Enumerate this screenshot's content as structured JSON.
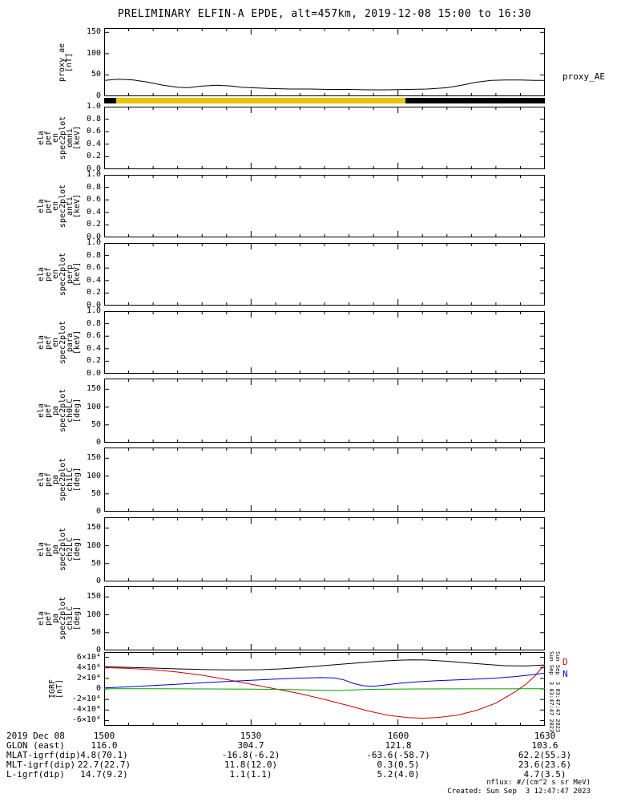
{
  "title": "PRELIMINARY ELFIN-A EPDE, alt=457km, 2019-12-08 15:00 to 16:30",
  "chart_data": {
    "type": "line",
    "x_unit": "minutes after 2019-12-08 15:00 UT",
    "xlim": [
      0,
      90
    ],
    "x_ticks": [
      {
        "t": 0,
        "label": "1500"
      },
      {
        "t": 30,
        "label": "1530"
      },
      {
        "t": 60,
        "label": "1600"
      },
      {
        "t": 90,
        "label": "1630"
      }
    ],
    "panels": [
      {
        "id": "proxy_ae",
        "ylabel_lines": [
          "proxy_ae",
          "[nT]"
        ],
        "ylim": [
          0,
          160
        ],
        "yticks": [
          {
            "v": 0,
            "label": "0"
          },
          {
            "v": 50,
            "label": "50"
          },
          {
            "v": 100,
            "label": "100"
          },
          {
            "v": 150,
            "label": "150"
          }
        ],
        "right_labels": [
          {
            "text": "proxy_AE",
            "color": "#000000",
            "v": 45
          }
        ],
        "series": [
          {
            "name": "proxy_AE",
            "color": "#000000",
            "points": [
              [
                0,
                37
              ],
              [
                3,
                40
              ],
              [
                6,
                38
              ],
              [
                9,
                33
              ],
              [
                12,
                26
              ],
              [
                15,
                21
              ],
              [
                17,
                20
              ],
              [
                20,
                24
              ],
              [
                23,
                26
              ],
              [
                26,
                24
              ],
              [
                28,
                21
              ],
              [
                30,
                20
              ],
              [
                34,
                18
              ],
              [
                38,
                17
              ],
              [
                42,
                17
              ],
              [
                46,
                16
              ],
              [
                50,
                16
              ],
              [
                54,
                15
              ],
              [
                58,
                15
              ],
              [
                62,
                16
              ],
              [
                66,
                17
              ],
              [
                70,
                20
              ],
              [
                73,
                26
              ],
              [
                76,
                33
              ],
              [
                79,
                37
              ],
              [
                82,
                38
              ],
              [
                85,
                38
              ],
              [
                88,
                37
              ],
              [
                90,
                37
              ]
            ]
          }
        ]
      },
      {
        "id": "science_zone_flag",
        "type": "strip",
        "segments": [
          {
            "t0": 0,
            "t1": 2.5,
            "color": "#000000"
          },
          {
            "t0": 2.5,
            "t1": 61.5,
            "color": "#e9c400"
          },
          {
            "t0": 61.5,
            "t1": 90,
            "color": "#000000"
          }
        ]
      },
      {
        "id": "ela_pef_en_spec2plot_omni",
        "ylabel_lines": [
          "ela",
          "pef",
          "en",
          "spec2plot",
          "omni",
          "[keV]"
        ],
        "ylim": [
          0,
          1
        ],
        "yticks": [
          {
            "v": 0,
            "label": "0.0"
          },
          {
            "v": 0.2,
            "label": "0.2"
          },
          {
            "v": 0.4,
            "label": "0.4"
          },
          {
            "v": 0.6,
            "label": "0.6"
          },
          {
            "v": 0.8,
            "label": "0.8"
          },
          {
            "v": 1,
            "label": "1.0"
          }
        ],
        "series": []
      },
      {
        "id": "ela_pef_en_spec2plot_anti",
        "ylabel_lines": [
          "ela",
          "pef",
          "en",
          "spec2plot",
          "anti",
          "[keV]"
        ],
        "ylim": [
          0,
          1
        ],
        "yticks": [
          {
            "v": 0,
            "label": "0.0"
          },
          {
            "v": 0.2,
            "label": "0.2"
          },
          {
            "v": 0.4,
            "label": "0.4"
          },
          {
            "v": 0.6,
            "label": "0.6"
          },
          {
            "v": 0.8,
            "label": "0.8"
          },
          {
            "v": 1,
            "label": "1.0"
          }
        ],
        "series": []
      },
      {
        "id": "ela_pef_en_spec2plot_perp",
        "ylabel_lines": [
          "ela",
          "pef",
          "en",
          "spec2plot",
          "perp",
          "[keV]"
        ],
        "ylim": [
          0,
          1
        ],
        "yticks": [
          {
            "v": 0,
            "label": "0.0"
          },
          {
            "v": 0.2,
            "label": "0.2"
          },
          {
            "v": 0.4,
            "label": "0.4"
          },
          {
            "v": 0.6,
            "label": "0.6"
          },
          {
            "v": 0.8,
            "label": "0.8"
          },
          {
            "v": 1,
            "label": "1.0"
          }
        ],
        "series": []
      },
      {
        "id": "ela_pef_en_spec2plot_para",
        "ylabel_lines": [
          "ela",
          "pef",
          "en",
          "spec2plot",
          "para",
          "[keV]"
        ],
        "ylim": [
          0,
          1
        ],
        "yticks": [
          {
            "v": 0,
            "label": "0.0"
          },
          {
            "v": 0.2,
            "label": "0.2"
          },
          {
            "v": 0.4,
            "label": "0.4"
          },
          {
            "v": 0.6,
            "label": "0.6"
          },
          {
            "v": 0.8,
            "label": "0.8"
          },
          {
            "v": 1,
            "label": "1.0"
          }
        ],
        "series": []
      },
      {
        "id": "ela_pef_pa_spec2plot_ch0LC",
        "ylabel_lines": [
          "ela",
          "pef",
          "pa",
          "spec2plot",
          "ch0LC",
          "[deg]"
        ],
        "ylim": [
          0,
          180
        ],
        "yticks": [
          {
            "v": 0,
            "label": "0"
          },
          {
            "v": 50,
            "label": "50"
          },
          {
            "v": 100,
            "label": "100"
          },
          {
            "v": 150,
            "label": "150"
          }
        ],
        "series": []
      },
      {
        "id": "ela_pef_pa_spec2plot_ch1LC",
        "ylabel_lines": [
          "ela",
          "pef",
          "pa",
          "spec2plot",
          "ch1LC",
          "[deg]"
        ],
        "ylim": [
          0,
          180
        ],
        "yticks": [
          {
            "v": 0,
            "label": "0"
          },
          {
            "v": 50,
            "label": "50"
          },
          {
            "v": 100,
            "label": "100"
          },
          {
            "v": 150,
            "label": "150"
          }
        ],
        "series": []
      },
      {
        "id": "ela_pef_pa_spec2plot_ch2LC",
        "ylabel_lines": [
          "ela",
          "pef",
          "pa",
          "spec2plot",
          "ch2LC",
          "[deg]"
        ],
        "ylim": [
          0,
          180
        ],
        "yticks": [
          {
            "v": 0,
            "label": "0"
          },
          {
            "v": 50,
            "label": "50"
          },
          {
            "v": 100,
            "label": "100"
          },
          {
            "v": 150,
            "label": "150"
          }
        ],
        "series": []
      },
      {
        "id": "ela_pef_pa_spec2plot_ch3LC",
        "ylabel_lines": [
          "ela",
          "pef",
          "pa",
          "spec2plot",
          "ch3LC",
          "[deg]"
        ],
        "ylim": [
          0,
          180
        ],
        "yticks": [
          {
            "v": 0,
            "label": "0"
          },
          {
            "v": 50,
            "label": "50"
          },
          {
            "v": 100,
            "label": "100"
          },
          {
            "v": 150,
            "label": "150"
          }
        ],
        "series": []
      },
      {
        "id": "igrf",
        "ylabel_lines": [
          "IGRF",
          "[nT]"
        ],
        "ylim": [
          -70000,
          70000
        ],
        "yticks": [
          {
            "v": 60000,
            "label": "6×10⁴"
          },
          {
            "v": 40000,
            "label": "4×10⁴"
          },
          {
            "v": 20000,
            "label": "2×10⁴"
          },
          {
            "v": 0,
            "label": "0"
          },
          {
            "v": -20000,
            "label": "-2×10⁴"
          },
          {
            "v": -40000,
            "label": "-4×10⁴"
          },
          {
            "v": -60000,
            "label": "-6×10⁴"
          }
        ],
        "right_labels": [
          {
            "text": "D",
            "color": "#cc0000",
            "v": 50000
          },
          {
            "text": "N",
            "color": "#0000cc",
            "v": 27000
          }
        ],
        "series": [
          {
            "name": "igrf_bmag",
            "color": "#000000",
            "points": [
              [
                0,
                42000
              ],
              [
                5,
                41000
              ],
              [
                10,
                39500
              ],
              [
                15,
                38000
              ],
              [
                20,
                36800
              ],
              [
                25,
                36200
              ],
              [
                28,
                36000
              ],
              [
                32,
                36500
              ],
              [
                36,
                38000
              ],
              [
                40,
                40500
              ],
              [
                44,
                43500
              ],
              [
                48,
                46500
              ],
              [
                52,
                49500
              ],
              [
                56,
                52500
              ],
              [
                60,
                54500
              ],
              [
                63,
                55200
              ],
              [
                66,
                54800
              ],
              [
                70,
                52500
              ],
              [
                74,
                49500
              ],
              [
                78,
                46500
              ],
              [
                82,
                44000
              ],
              [
                86,
                43500
              ],
              [
                90,
                45500
              ]
            ]
          },
          {
            "name": "igrf_d",
            "color": "#cc0000",
            "points": [
              [
                0,
                40500
              ],
              [
                5,
                39000
              ],
              [
                10,
                36500
              ],
              [
                15,
                32000
              ],
              [
                20,
                26000
              ],
              [
                25,
                18000
              ],
              [
                30,
                9000
              ],
              [
                35,
                0
              ],
              [
                40,
                -9000
              ],
              [
                45,
                -20000
              ],
              [
                50,
                -32000
              ],
              [
                54,
                -42000
              ],
              [
                58,
                -50000
              ],
              [
                62,
                -54500
              ],
              [
                65,
                -55500
              ],
              [
                68,
                -54500
              ],
              [
                72,
                -50000
              ],
              [
                76,
                -41000
              ],
              [
                80,
                -27000
              ],
              [
                84,
                -5000
              ],
              [
                86,
                8000
              ],
              [
                88,
                25000
              ],
              [
                90,
                47000
              ]
            ]
          },
          {
            "name": "igrf_n",
            "color": "#0000cc",
            "points": [
              [
                0,
                2000
              ],
              [
                5,
                4000
              ],
              [
                10,
                6500
              ],
              [
                15,
                9000
              ],
              [
                20,
                11500
              ],
              [
                25,
                14000
              ],
              [
                30,
                16500
              ],
              [
                35,
                18500
              ],
              [
                40,
                20500
              ],
              [
                44,
                21500
              ],
              [
                47,
                21000
              ],
              [
                49,
                17000
              ],
              [
                51,
                10000
              ],
              [
                53,
                6000
              ],
              [
                55,
                5000
              ],
              [
                57,
                7000
              ],
              [
                60,
                10500
              ],
              [
                64,
                13500
              ],
              [
                68,
                15500
              ],
              [
                72,
                17000
              ],
              [
                76,
                18500
              ],
              [
                80,
                20500
              ],
              [
                84,
                23500
              ],
              [
                87,
                26500
              ],
              [
                90,
                30000
              ]
            ]
          },
          {
            "name": "igrf_e",
            "color": "#00a000",
            "points": [
              [
                0,
                500
              ],
              [
                10,
                300
              ],
              [
                20,
                0
              ],
              [
                30,
                -500
              ],
              [
                38,
                -1200
              ],
              [
                44,
                -2500
              ],
              [
                48,
                -3000
              ],
              [
                51,
                -2000
              ],
              [
                54,
                -800
              ],
              [
                58,
                -300
              ],
              [
                65,
                0
              ],
              [
                75,
                200
              ],
              [
                85,
                300
              ],
              [
                90,
                400
              ]
            ]
          }
        ]
      }
    ]
  },
  "footer": {
    "rows": [
      {
        "label": "2019 Dec 08",
        "values": [
          "1500",
          "1530",
          "1600",
          "1630"
        ]
      },
      {
        "label": "GLON (east)",
        "values": [
          "116.0",
          "304.7",
          "121.8",
          "103.6"
        ]
      },
      {
        "label": "MLAT-igrf(dip)",
        "values": [
          "4.8(70.1)",
          "-16.8(-6.2)",
          "-63.6(-58.7)",
          "62.2(55.3)"
        ]
      },
      {
        "label": "MLT-igrf(dip)",
        "values": [
          "22.7(22.7)",
          "11.8(12.0)",
          "0.3(0.5)",
          "23.6(23.6)"
        ]
      },
      {
        "label": "L-igrf(dip)",
        "values": [
          "14.7(9.2)",
          "1.1(1.1)",
          "5.2(4.0)",
          "4.7(3.5)"
        ]
      }
    ],
    "notes": [
      "nflux: #/(cm^2 s sr MeV)",
      "Created: Sun Sep  3 12:47:47 2023"
    ],
    "side_timestamp": "Sun Sep  3 03:47:47 2023"
  }
}
